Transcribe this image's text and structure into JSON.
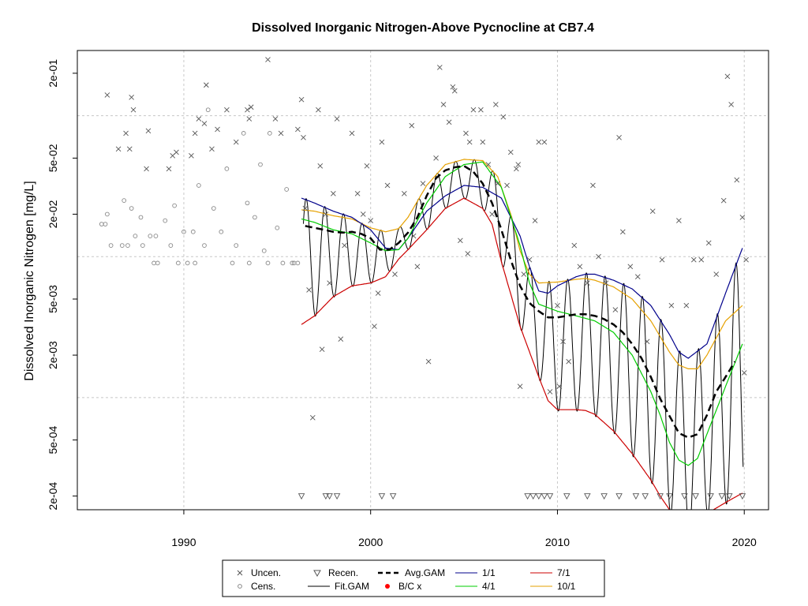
{
  "chart_data": {
    "type": "line",
    "title": "Dissolved Inorganic Nitrogen-Above Pycnocline at CB7.4",
    "ylabel": "Dissolved Inorganic Nitrogen [mg/L]",
    "xlabel": "",
    "y_scale": "log",
    "xlim": [
      1984.3,
      2021.3
    ],
    "ylim": [
      0.00016,
      0.29
    ],
    "grid": true,
    "x_ticks": [
      {
        "value": 1990,
        "label": "1990"
      },
      {
        "value": 2000,
        "label": "2000"
      },
      {
        "value": 2010,
        "label": "2010"
      },
      {
        "value": 2020,
        "label": "2020"
      }
    ],
    "y_ticks": [
      {
        "value": 0.0002,
        "label": "2e-04"
      },
      {
        "value": 0.0005,
        "label": "5e-04"
      },
      {
        "value": 0.002,
        "label": "2e-03"
      },
      {
        "value": 0.005,
        "label": "5e-03"
      },
      {
        "value": 0.02,
        "label": "2e-02"
      },
      {
        "value": 0.05,
        "label": "5e-02"
      },
      {
        "value": 0.2,
        "label": "2e-01"
      }
    ],
    "y_gridlines": [
      0.001,
      0.01,
      0.1
    ],
    "colors": {
      "avg_gam": "#000000",
      "fit_gam": "#000000",
      "bc_point": "#ff0000",
      "series_1_1": "#00008b",
      "series_4_1": "#00cc00",
      "series_7_1": "#cc0000",
      "series_10_1": "#e6a100",
      "uncensored": "#555555",
      "censored": "#888888"
    },
    "series": [
      {
        "key": "avg",
        "x": [
          1996.5,
          1997,
          1997.5,
          1998,
          1998.5,
          1999,
          1999.5,
          2000,
          2000.5,
          2001,
          2001.5,
          2002,
          2002.5,
          2003,
          2003.5,
          2004,
          2004.5,
          2005,
          2005.5,
          2006,
          2006.5,
          2007,
          2007.5,
          2008,
          2008.5,
          2009,
          2009.5,
          2010,
          2010.5,
          2011,
          2011.5,
          2012,
          2012.5,
          2013,
          2013.5,
          2014,
          2014.5,
          2015,
          2015.5,
          2016,
          2016.5,
          2017,
          2017.5,
          2018,
          2018.5,
          2019,
          2019.5
        ],
        "y": [
          0.0165,
          0.016,
          0.0155,
          0.015,
          0.0148,
          0.015,
          0.0145,
          0.0135,
          0.0112,
          0.0112,
          0.0125,
          0.0148,
          0.019,
          0.027,
          0.036,
          0.041,
          0.043,
          0.044,
          0.04,
          0.033,
          0.024,
          0.0155,
          0.0095,
          0.0062,
          0.0047,
          0.0041,
          0.0037,
          0.0037,
          0.0038,
          0.0039,
          0.0039,
          0.0038,
          0.0036,
          0.0033,
          0.0029,
          0.0024,
          0.0019,
          0.0014,
          0.00098,
          0.00074,
          0.00056,
          0.00052,
          0.00055,
          0.00075,
          0.0011,
          0.0014,
          0.0018
        ]
      },
      {
        "key": "s1",
        "name": "1/1",
        "x": [
          1996.3,
          1997,
          1998,
          1999,
          2000,
          2000.8,
          2001.5,
          2002,
          2003,
          2004,
          2005,
          2006,
          2007,
          2008,
          2008.5,
          2009,
          2009.5,
          2010,
          2011,
          2011.5,
          2012,
          2013,
          2014,
          2015,
          2016,
          2016.5,
          2017,
          2018,
          2019,
          2019.9
        ],
        "y": [
          0.026,
          0.024,
          0.021,
          0.019,
          0.0155,
          0.0115,
          0.0112,
          0.0135,
          0.021,
          0.027,
          0.032,
          0.031,
          0.026,
          0.014,
          0.0085,
          0.0057,
          0.0055,
          0.0062,
          0.0072,
          0.0075,
          0.0075,
          0.0068,
          0.0059,
          0.0045,
          0.0028,
          0.0021,
          0.0019,
          0.0024,
          0.0055,
          0.0115
        ]
      },
      {
        "key": "s4",
        "name": "4/1",
        "x": [
          1996.3,
          1997,
          1998,
          1999,
          2000,
          2000.8,
          2001.5,
          2002,
          2003,
          2004,
          2005,
          2006,
          2007,
          2008,
          2008.5,
          2009,
          2010,
          2011,
          2012,
          2013,
          2014,
          2015,
          2015.5,
          2016,
          2016.5,
          2017,
          2017.5,
          2018,
          2019,
          2019.9
        ],
        "y": [
          0.0185,
          0.0175,
          0.0155,
          0.0145,
          0.0125,
          0.011,
          0.0112,
          0.0135,
          0.024,
          0.037,
          0.045,
          0.047,
          0.031,
          0.012,
          0.0065,
          0.0046,
          0.0041,
          0.0038,
          0.0035,
          0.0029,
          0.002,
          0.0011,
          0.00075,
          0.00048,
          0.00036,
          0.00033,
          0.00037,
          0.00055,
          0.0012,
          0.0024
        ]
      },
      {
        "key": "s7",
        "name": "7/1",
        "x": [
          1996.3,
          1997,
          1998,
          1999,
          2000,
          2000.8,
          2001.5,
          2002,
          2003,
          2004,
          2005,
          2006,
          2006.5,
          2007,
          2008,
          2009,
          2009.5,
          2010,
          2011,
          2011.5,
          2012,
          2013,
          2014,
          2015,
          2015.5,
          2016,
          2016.5,
          2017,
          2017.5,
          2018,
          2019,
          2019.9
        ],
        "y": [
          0.0033,
          0.0038,
          0.0052,
          0.0062,
          0.0065,
          0.0072,
          0.0096,
          0.0112,
          0.0155,
          0.022,
          0.026,
          0.022,
          0.017,
          0.0092,
          0.0032,
          0.0014,
          0.00095,
          0.00082,
          0.00082,
          0.00081,
          0.00076,
          0.00058,
          0.0004,
          0.00026,
          0.0002,
          0.00016,
          0.00012,
          0.00011,
          0.00012,
          0.00015,
          0.00018,
          0.00021
        ]
      },
      {
        "key": "s10",
        "name": "10/1",
        "x": [
          1996.3,
          1997,
          1998,
          1999,
          2000,
          2000.8,
          2001.5,
          2002,
          2003,
          2004,
          2005,
          2006,
          2006.8,
          2007.5,
          2008,
          2008.5,
          2009,
          2010,
          2011,
          2011.5,
          2012,
          2013,
          2014,
          2015,
          2016,
          2016.5,
          2017,
          2017.5,
          2018,
          2019,
          2019.9
        ],
        "y": [
          0.0215,
          0.021,
          0.0195,
          0.0185,
          0.016,
          0.015,
          0.0158,
          0.019,
          0.032,
          0.045,
          0.049,
          0.048,
          0.037,
          0.02,
          0.011,
          0.0075,
          0.0065,
          0.0066,
          0.0069,
          0.007,
          0.0068,
          0.0061,
          0.005,
          0.0035,
          0.0021,
          0.0017,
          0.0016,
          0.0016,
          0.002,
          0.0035,
          0.0045
        ]
      }
    ],
    "bc_points": [
      {
        "x": 1997.2,
        "y": 0.0165
      },
      {
        "x": 2018.9,
        "y": 0.00135
      }
    ],
    "uncensored_points": [
      [
        1985.9,
        0.14
      ],
      [
        1986.5,
        0.058
      ],
      [
        1986.9,
        0.075
      ],
      [
        1987.1,
        0.058
      ],
      [
        1987.2,
        0.135
      ],
      [
        1987.3,
        0.11
      ],
      [
        1988.1,
        0.078
      ],
      [
        1988.0,
        0.042
      ],
      [
        1989.2,
        0.042
      ],
      [
        1989.4,
        0.052
      ],
      [
        1989.6,
        0.055
      ],
      [
        1990.4,
        0.052
      ],
      [
        1990.6,
        0.075
      ],
      [
        1990.8,
        0.095
      ],
      [
        1991.1,
        0.088
      ],
      [
        1991.2,
        0.165
      ],
      [
        1991.5,
        0.058
      ],
      [
        1991.8,
        0.08
      ],
      [
        1992.3,
        0.11
      ],
      [
        1992.8,
        0.065
      ],
      [
        1993.4,
        0.11
      ],
      [
        1993.5,
        0.095
      ],
      [
        1993.6,
        0.115
      ],
      [
        1994.5,
        0.25
      ],
      [
        1994.9,
        0.095
      ],
      [
        1995.2,
        0.075
      ],
      [
        1996.1,
        0.08
      ],
      [
        1996.3,
        0.13
      ],
      [
        1996.4,
        0.07
      ],
      [
        1996.5,
        0.022
      ],
      [
        1996.7,
        0.0058
      ],
      [
        1997.2,
        0.11
      ],
      [
        1997.3,
        0.044
      ],
      [
        1997.6,
        0.02
      ],
      [
        1997.8,
        0.0065
      ],
      [
        1998.0,
        0.028
      ],
      [
        1998.2,
        0.095
      ],
      [
        1998.6,
        0.012
      ],
      [
        1999.0,
        0.075
      ],
      [
        1999.3,
        0.028
      ],
      [
        1999.6,
        0.02
      ],
      [
        1999.8,
        0.044
      ],
      [
        2000.0,
        0.018
      ],
      [
        2000.2,
        0.0032
      ],
      [
        2000.4,
        0.0055
      ],
      [
        2000.6,
        0.065
      ],
      [
        2000.9,
        0.032
      ],
      [
        2001.3,
        0.0075
      ],
      [
        2001.8,
        0.028
      ],
      [
        2002.2,
        0.085
      ],
      [
        2002.5,
        0.0085
      ],
      [
        2002.8,
        0.033
      ],
      [
        2003.1,
        0.0018
      ],
      [
        2003.5,
        0.05
      ],
      [
        2003.9,
        0.12
      ],
      [
        2004.2,
        0.09
      ],
      [
        2004.4,
        0.16
      ],
      [
        2004.5,
        0.15
      ],
      [
        2004.8,
        0.013
      ],
      [
        2005.1,
        0.075
      ],
      [
        2005.3,
        0.065
      ],
      [
        2005.5,
        0.11
      ],
      [
        2005.9,
        0.11
      ],
      [
        2006.0,
        0.065
      ],
      [
        2006.3,
        0.045
      ],
      [
        2006.5,
        0.02
      ],
      [
        2006.8,
        0.033
      ],
      [
        2007.1,
        0.098
      ],
      [
        2007.3,
        0.032
      ],
      [
        2007.5,
        0.055
      ],
      [
        2007.8,
        0.042
      ],
      [
        2008.0,
        0.0012
      ],
      [
        2008.2,
        0.0075
      ],
      [
        2008.5,
        0.0095
      ],
      [
        2008.8,
        0.018
      ],
      [
        2009.0,
        0.065
      ],
      [
        2009.3,
        0.065
      ],
      [
        2009.6,
        0.0011
      ],
      [
        2010.0,
        0.0045
      ],
      [
        2010.1,
        0.0012
      ],
      [
        2010.3,
        0.0025
      ],
      [
        2010.6,
        0.0018
      ],
      [
        2010.9,
        0.012
      ],
      [
        2011.2,
        0.0085
      ],
      [
        2011.6,
        0.0065
      ],
      [
        2011.9,
        0.032
      ],
      [
        2012.2,
        0.01
      ],
      [
        2012.6,
        0.0065
      ],
      [
        2013.1,
        0.0042
      ],
      [
        2013.5,
        0.015
      ],
      [
        2013.9,
        0.0085
      ],
      [
        2014.3,
        0.0072
      ],
      [
        2014.8,
        0.0025
      ],
      [
        2015.1,
        0.021
      ],
      [
        2015.6,
        0.0095
      ],
      [
        2016.1,
        0.0045
      ],
      [
        2016.5,
        0.018
      ],
      [
        2016.9,
        0.0045
      ],
      [
        2017.3,
        0.0095
      ],
      [
        2017.7,
        0.0095
      ],
      [
        2018.1,
        0.0125
      ],
      [
        2018.5,
        0.0075
      ],
      [
        2018.9,
        0.025
      ],
      [
        2019.1,
        0.19
      ],
      [
        2019.3,
        0.12
      ],
      [
        2019.6,
        0.035
      ],
      [
        2019.9,
        0.019
      ],
      [
        2020.0,
        0.0015
      ],
      [
        2020.1,
        0.0095
      ],
      [
        2003.7,
        0.22
      ],
      [
        2006.7,
        0.12
      ],
      [
        2007.9,
        0.045
      ],
      [
        2013.3,
        0.07
      ],
      [
        1996.9,
        0.00072
      ],
      [
        1997.4,
        0.0022
      ],
      [
        1998.4,
        0.0026
      ],
      [
        2002.3,
        0.014
      ],
      [
        2005.2,
        0.0105
      ]
    ],
    "censored_points": [
      [
        1985.6,
        0.017
      ],
      [
        1985.8,
        0.017
      ],
      [
        1985.9,
        0.02
      ],
      [
        1986.7,
        0.012
      ],
      [
        1986.8,
        0.025
      ],
      [
        1987.2,
        0.022
      ],
      [
        1987.4,
        0.014
      ],
      [
        1987.7,
        0.019
      ],
      [
        1987.8,
        0.012
      ],
      [
        1988.2,
        0.014
      ],
      [
        1988.4,
        0.009
      ],
      [
        1988.5,
        0.014
      ],
      [
        1989.0,
        0.018
      ],
      [
        1989.3,
        0.012
      ],
      [
        1989.5,
        0.023
      ],
      [
        1990.0,
        0.015
      ],
      [
        1990.2,
        0.009
      ],
      [
        1990.5,
        0.015
      ],
      [
        1990.8,
        0.032
      ],
      [
        1991.1,
        0.012
      ],
      [
        1991.3,
        0.11
      ],
      [
        1991.6,
        0.022
      ],
      [
        1992.0,
        0.015
      ],
      [
        1992.3,
        0.042
      ],
      [
        1992.8,
        0.012
      ],
      [
        1993.2,
        0.075
      ],
      [
        1993.4,
        0.024
      ],
      [
        1993.8,
        0.019
      ],
      [
        1994.1,
        0.045
      ],
      [
        1994.3,
        0.011
      ],
      [
        1994.6,
        0.075
      ],
      [
        1995.0,
        0.016
      ],
      [
        1995.5,
        0.03
      ],
      [
        1995.8,
        0.009
      ],
      [
        1986.1,
        0.012
      ],
      [
        1987.0,
        0.012
      ],
      [
        1988.6,
        0.009
      ],
      [
        1989.7,
        0.009
      ],
      [
        1990.6,
        0.009
      ],
      [
        1992.6,
        0.009
      ],
      [
        1993.5,
        0.009
      ],
      [
        1994.5,
        0.009
      ],
      [
        1995.3,
        0.009
      ],
      [
        1995.9,
        0.009
      ],
      [
        1996.1,
        0.009
      ]
    ],
    "recensored_points": [
      [
        1996.3,
        0.0002
      ],
      [
        1997.6,
        0.0002
      ],
      [
        1997.8,
        0.0002
      ],
      [
        1998.2,
        0.0002
      ],
      [
        2000.6,
        0.0002
      ],
      [
        2001.2,
        0.0002
      ],
      [
        2008.4,
        0.0002
      ],
      [
        2008.7,
        0.0002
      ],
      [
        2009.0,
        0.0002
      ],
      [
        2009.3,
        0.0002
      ],
      [
        2009.6,
        0.0002
      ],
      [
        2010.5,
        0.0002
      ],
      [
        2011.6,
        0.0002
      ],
      [
        2012.5,
        0.0002
      ],
      [
        2013.3,
        0.0002
      ],
      [
        2014.2,
        0.0002
      ],
      [
        2014.7,
        0.0002
      ],
      [
        2015.5,
        0.0002
      ],
      [
        2016.0,
        0.0002
      ],
      [
        2016.8,
        0.0002
      ],
      [
        2017.4,
        0.0002
      ],
      [
        2018.2,
        0.0002
      ],
      [
        2018.8,
        0.0002
      ],
      [
        2019.2,
        0.0002
      ],
      [
        2019.9,
        0.0002
      ]
    ],
    "legend": {
      "placement": "bottom",
      "items": [
        {
          "label": "Uncen.",
          "symbol": "x"
        },
        {
          "label": "Cens.",
          "symbol": "o"
        },
        {
          "label": "Recen.",
          "symbol": "tri"
        },
        {
          "label": "Fit.GAM",
          "symbol": "line-thin"
        },
        {
          "label": "Avg.GAM",
          "symbol": "line-dash"
        },
        {
          "label": "B/C x",
          "symbol": "dot-red"
        },
        {
          "label": "1/1",
          "symbol": "line-blue"
        },
        {
          "label": "4/1",
          "symbol": "line-green"
        },
        {
          "label": "7/1",
          "symbol": "line-red"
        },
        {
          "label": "10/1",
          "symbol": "line-orange"
        }
      ]
    }
  }
}
